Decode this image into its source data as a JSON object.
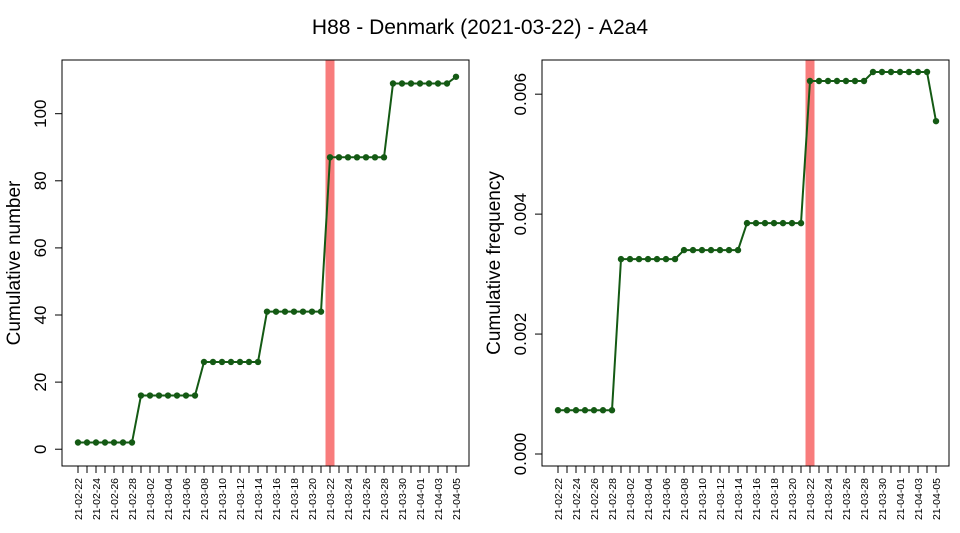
{
  "title": "H88 - Denmark (2021-03-22) - A2a4",
  "colors": {
    "line": "#145a14",
    "highlight": "#f87c7c",
    "frame": "#000000"
  },
  "chart_data": [
    {
      "type": "line",
      "ylabel": "Cumulative number",
      "ylim": [
        -5,
        116
      ],
      "yticks": [
        0,
        20,
        40,
        60,
        80,
        100
      ],
      "highlight_date": "21-03-22",
      "x": [
        "21-02-22",
        "21-02-23",
        "21-02-24",
        "21-02-25",
        "21-02-26",
        "21-02-27",
        "21-02-28",
        "21-03-01",
        "21-03-02",
        "21-03-03",
        "21-03-04",
        "21-03-05",
        "21-03-06",
        "21-03-07",
        "21-03-08",
        "21-03-09",
        "21-03-10",
        "21-03-11",
        "21-03-12",
        "21-03-13",
        "21-03-14",
        "21-03-15",
        "21-03-16",
        "21-03-17",
        "21-03-18",
        "21-03-19",
        "21-03-20",
        "21-03-21",
        "21-03-22",
        "21-03-23",
        "21-03-24",
        "21-03-25",
        "21-03-26",
        "21-03-27",
        "21-03-28",
        "21-03-29",
        "21-03-30",
        "21-03-31",
        "21-04-01",
        "21-04-02",
        "21-04-03",
        "21-04-04",
        "21-04-05"
      ],
      "xticklabels": [
        "21-02-22",
        "21-02-24",
        "21-02-26",
        "21-02-28",
        "21-03-02",
        "21-03-04",
        "21-03-06",
        "21-03-08",
        "21-03-10",
        "21-03-12",
        "21-03-14",
        "21-03-16",
        "21-03-18",
        "21-03-20",
        "21-03-22",
        "21-03-24",
        "21-03-26",
        "21-03-28",
        "21-03-30",
        "21-04-01",
        "21-04-03",
        "21-04-05"
      ],
      "values": [
        2,
        2,
        2,
        2,
        2,
        2,
        2,
        16,
        16,
        16,
        16,
        16,
        16,
        16,
        26,
        26,
        26,
        26,
        26,
        26,
        26,
        41,
        41,
        41,
        41,
        41,
        41,
        41,
        87,
        87,
        87,
        87,
        87,
        87,
        87,
        109,
        109,
        109,
        109,
        109,
        109,
        109,
        111
      ]
    },
    {
      "type": "line",
      "ylabel": "Cumulative frequency",
      "ylim": [
        -0.0002,
        0.00657
      ],
      "yticks": [
        0.0,
        0.002,
        0.004,
        0.006
      ],
      "yticklabels": [
        "0.000",
        "0.002",
        "0.004",
        "0.006"
      ],
      "highlight_date": "21-03-22",
      "x": [
        "21-02-22",
        "21-02-23",
        "21-02-24",
        "21-02-25",
        "21-02-26",
        "21-02-27",
        "21-02-28",
        "21-03-01",
        "21-03-02",
        "21-03-03",
        "21-03-04",
        "21-03-05",
        "21-03-06",
        "21-03-07",
        "21-03-08",
        "21-03-09",
        "21-03-10",
        "21-03-11",
        "21-03-12",
        "21-03-13",
        "21-03-14",
        "21-03-15",
        "21-03-16",
        "21-03-17",
        "21-03-18",
        "21-03-19",
        "21-03-20",
        "21-03-21",
        "21-03-22",
        "21-03-23",
        "21-03-24",
        "21-03-25",
        "21-03-26",
        "21-03-27",
        "21-03-28",
        "21-03-29",
        "21-03-30",
        "21-03-31",
        "21-04-01",
        "21-04-02",
        "21-04-03",
        "21-04-04",
        "21-04-05"
      ],
      "xticklabels": [
        "21-02-22",
        "21-02-24",
        "21-02-26",
        "21-02-28",
        "21-03-02",
        "21-03-04",
        "21-03-06",
        "21-03-08",
        "21-03-10",
        "21-03-12",
        "21-03-14",
        "21-03-16",
        "21-03-18",
        "21-03-20",
        "21-03-22",
        "21-03-24",
        "21-03-26",
        "21-03-28",
        "21-03-30",
        "21-04-01",
        "21-04-03",
        "21-04-05"
      ],
      "values": [
        0.00073,
        0.00073,
        0.00073,
        0.00073,
        0.00073,
        0.00073,
        0.00073,
        0.00325,
        0.00325,
        0.00325,
        0.00325,
        0.00325,
        0.00325,
        0.00325,
        0.0034,
        0.0034,
        0.0034,
        0.0034,
        0.0034,
        0.0034,
        0.0034,
        0.00385,
        0.00385,
        0.00385,
        0.00385,
        0.00385,
        0.00385,
        0.00385,
        0.00622,
        0.00622,
        0.00622,
        0.00622,
        0.00622,
        0.00622,
        0.00622,
        0.00637,
        0.00637,
        0.00637,
        0.00637,
        0.00637,
        0.00637,
        0.00637,
        0.00555
      ]
    }
  ]
}
